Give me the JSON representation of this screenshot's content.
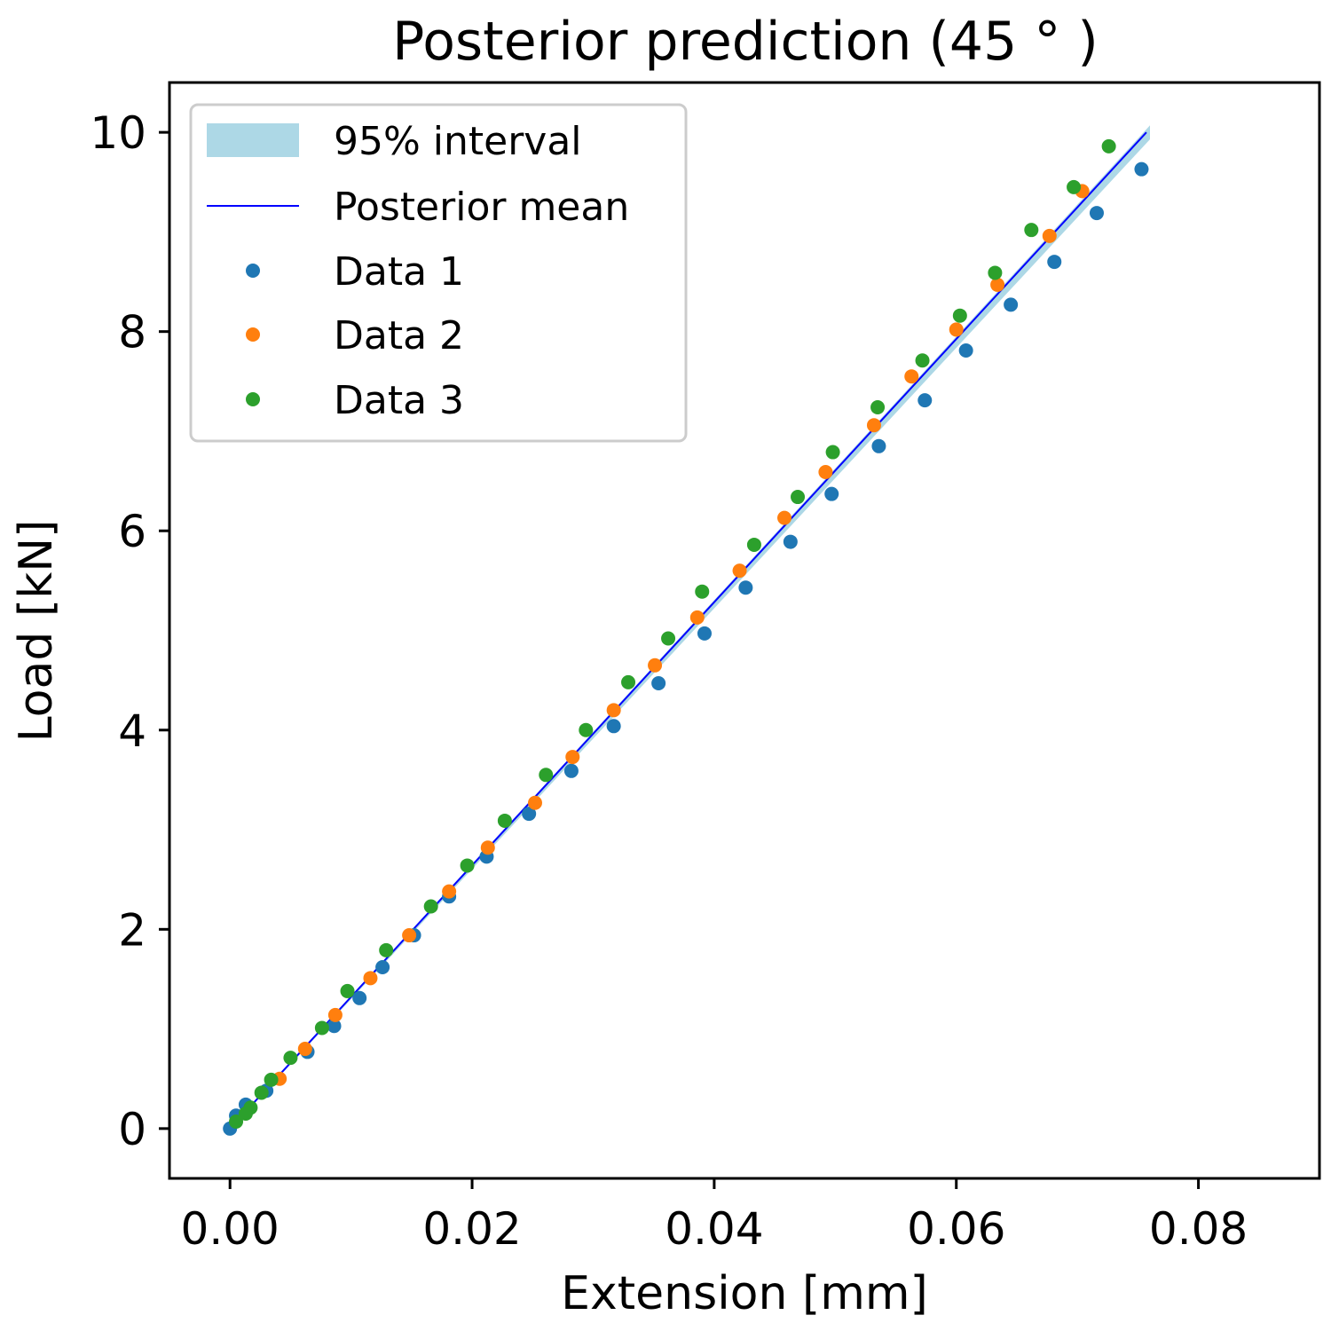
{
  "chart_data": {
    "type": "scatter",
    "title": "Posterior prediction (45$^\\circ$)",
    "title_display": "Posterior prediction (45 ° )",
    "xlabel": "Extension [mm]",
    "ylabel": "Load [kN]",
    "xlim": [
      -0.005,
      0.09
    ],
    "ylim": [
      -0.5,
      10.5
    ],
    "x_ticks": [
      0.0,
      0.02,
      0.04,
      0.06,
      0.08
    ],
    "x_tick_labels": [
      "0.00",
      "0.02",
      "0.04",
      "0.06",
      "0.08"
    ],
    "y_ticks": [
      0,
      2,
      4,
      6,
      8,
      10
    ],
    "y_tick_labels": [
      "0",
      "2",
      "4",
      "6",
      "8",
      "10"
    ],
    "grid": false,
    "legend": {
      "position": "upper-left",
      "entries": [
        {
          "label": "95% interval",
          "kind": "band",
          "color": "#add8e6"
        },
        {
          "label": "Posterior mean",
          "kind": "line",
          "color": "#0000ff"
        },
        {
          "label": "Data 1",
          "kind": "marker",
          "color": "#1f77b4"
        },
        {
          "label": "Data 2",
          "kind": "marker",
          "color": "#ff7f0e"
        },
        {
          "label": "Data 3",
          "kind": "marker",
          "color": "#2ca02c"
        }
      ]
    },
    "interval": {
      "name": "95% interval",
      "color": "#add8e6",
      "x": [
        0.0,
        0.076
      ],
      "lower": [
        -0.01,
        9.93
      ],
      "upper": [
        0.01,
        10.07
      ]
    },
    "mean_line": {
      "name": "Posterior mean",
      "color": "#0000ff",
      "x": [
        0.0,
        0.0757
      ],
      "y": [
        0.0,
        10.0
      ]
    },
    "series": [
      {
        "name": "Data 1",
        "color": "#1f77b4",
        "x": [
          0.0,
          0.0005,
          0.0013,
          0.003,
          0.0064,
          0.0086,
          0.0107,
          0.0126,
          0.0152,
          0.0181,
          0.0212,
          0.0247,
          0.0282,
          0.0317,
          0.0354,
          0.0392,
          0.0426,
          0.0463,
          0.0497,
          0.0536,
          0.0574,
          0.0608,
          0.0645,
          0.0681,
          0.0716,
          0.0753
        ],
        "y": [
          0.0,
          0.13,
          0.24,
          0.38,
          0.77,
          1.03,
          1.31,
          1.62,
          1.94,
          2.33,
          2.73,
          3.16,
          3.59,
          4.04,
          4.47,
          4.97,
          5.43,
          5.89,
          6.37,
          6.85,
          7.31,
          7.81,
          8.27,
          8.7,
          9.19,
          9.63
        ]
      },
      {
        "name": "Data 2",
        "color": "#ff7f0e",
        "x": [
          0.0041,
          0.0062,
          0.0087,
          0.0116,
          0.0148,
          0.0181,
          0.0213,
          0.0252,
          0.0283,
          0.0317,
          0.0351,
          0.0386,
          0.0421,
          0.0458,
          0.0492,
          0.0532,
          0.0563,
          0.06,
          0.0634,
          0.0677,
          0.0704
        ],
        "y": [
          0.5,
          0.8,
          1.14,
          1.51,
          1.94,
          2.38,
          2.82,
          3.27,
          3.73,
          4.2,
          4.65,
          5.13,
          5.6,
          6.13,
          6.59,
          7.06,
          7.55,
          8.02,
          8.47,
          8.96,
          9.41
        ]
      },
      {
        "name": "Data 3",
        "color": "#2ca02c",
        "x": [
          0.0005,
          0.0013,
          0.0017,
          0.0026,
          0.0034,
          0.005,
          0.0076,
          0.0097,
          0.0129,
          0.0166,
          0.0196,
          0.0227,
          0.0261,
          0.0294,
          0.0329,
          0.0362,
          0.039,
          0.0433,
          0.0469,
          0.0498,
          0.0535,
          0.0572,
          0.0603,
          0.0632,
          0.0662,
          0.0697,
          0.0726
        ],
        "y": [
          0.07,
          0.15,
          0.21,
          0.36,
          0.49,
          0.71,
          1.01,
          1.38,
          1.79,
          2.23,
          2.64,
          3.09,
          3.55,
          4.0,
          4.48,
          4.92,
          5.39,
          5.86,
          6.34,
          6.79,
          7.24,
          7.71,
          8.16,
          8.59,
          9.02,
          9.45,
          9.86
        ]
      }
    ]
  }
}
